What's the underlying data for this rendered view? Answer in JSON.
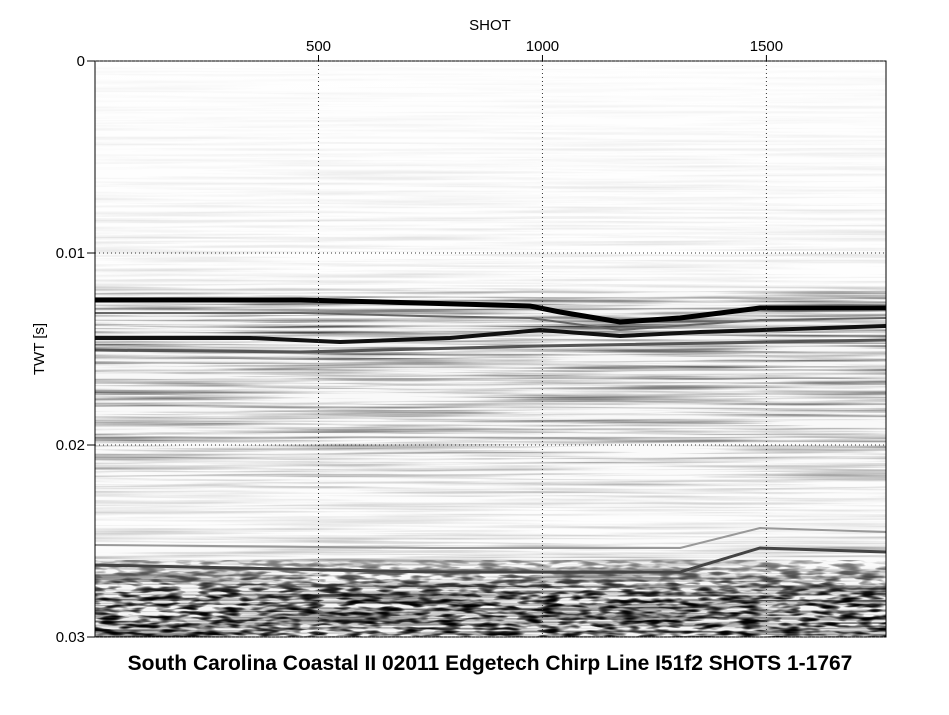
{
  "chart_data": {
    "type": "seismic",
    "title": "South Carolina Coastal II 02011 Edgetech Chirp Line I51f2 SHOTS 1-1767",
    "x_label": "SHOT",
    "y_label": "TWT [s]",
    "xlim": [
      1,
      1767
    ],
    "xticks": [
      500,
      1000,
      1500
    ],
    "ylim": [
      0,
      0.03
    ],
    "yticks": [
      0,
      0.01,
      0.02,
      0.03
    ],
    "grid": true,
    "x_axis_position": "top"
  }
}
